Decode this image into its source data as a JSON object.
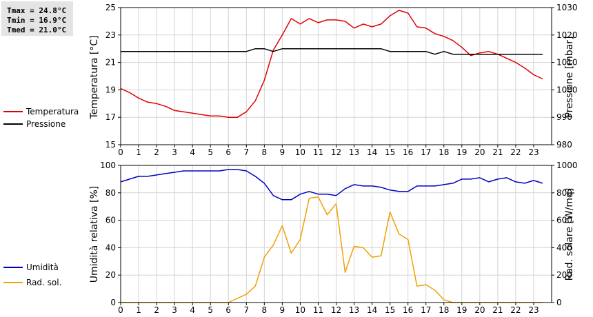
{
  "stats": {
    "tmax": "Tmax = 24.8°C",
    "tmin": "Tmin = 16.9°C",
    "tmed": "Tmed = 21.0°C"
  },
  "chart_data": [
    {
      "type": "line",
      "xlabel": "",
      "ylabel": "Temperatura [°C]",
      "ylabel_right": "Pressione [mbar]",
      "xlim": [
        0,
        24
      ],
      "xticks": [
        "0",
        "1",
        "2",
        "3",
        "4",
        "5",
        "6",
        "7",
        "8",
        "9",
        "10",
        "11",
        "12",
        "13",
        "14",
        "15",
        "16",
        "17",
        "18",
        "19",
        "20",
        "21",
        "22",
        "23"
      ],
      "ylim": [
        15,
        25
      ],
      "yticks": [
        "15",
        "17",
        "19",
        "21",
        "23",
        "25"
      ],
      "ylim_right": [
        980,
        1030
      ],
      "yticks_right": [
        "980",
        "990",
        "1000",
        "1010",
        "1020",
        "1030"
      ],
      "grid": true,
      "series": [
        {
          "name": "Temperatura",
          "axis": "left",
          "color": "#e00000",
          "x": [
            0,
            0.5,
            1,
            1.5,
            2,
            2.5,
            3,
            3.5,
            4,
            4.5,
            5,
            5.5,
            6,
            6.5,
            7,
            7.5,
            8,
            8.5,
            9,
            9.5,
            10,
            10.5,
            11,
            11.5,
            12,
            12.5,
            13,
            13.5,
            14,
            14.5,
            15,
            15.5,
            16,
            16.5,
            17,
            17.5,
            18,
            18.5,
            19,
            19.5,
            20,
            20.5,
            21,
            21.5,
            22,
            22.5,
            23,
            23.5
          ],
          "values": [
            19.1,
            18.8,
            18.4,
            18.1,
            18.0,
            17.8,
            17.5,
            17.4,
            17.3,
            17.2,
            17.1,
            17.1,
            17.0,
            17.0,
            17.4,
            18.2,
            19.7,
            21.9,
            23.0,
            24.2,
            23.8,
            24.2,
            23.9,
            24.1,
            24.1,
            24.0,
            23.5,
            23.8,
            23.6,
            23.8,
            24.4,
            24.8,
            24.6,
            23.6,
            23.5,
            23.1,
            22.9,
            22.6,
            22.1,
            21.5,
            21.7,
            21.8,
            21.6,
            21.3,
            21.0,
            20.6,
            20.1,
            19.8
          ]
        },
        {
          "name": "Pressione",
          "axis": "right",
          "color": "#000000",
          "x": [
            0,
            7,
            7.5,
            8,
            8.5,
            9,
            14.5,
            15,
            17,
            17.5,
            18,
            18.5,
            23.5
          ],
          "values": [
            1014,
            1014,
            1015,
            1015,
            1014,
            1015,
            1015,
            1014,
            1014,
            1013,
            1014,
            1013,
            1013
          ]
        }
      ]
    },
    {
      "type": "line",
      "xlabel": "",
      "ylabel": "Umidità relativa [%]",
      "ylabel_right": "Rad. solare [W/mq]",
      "xlim": [
        0,
        24
      ],
      "xticks": [
        "0",
        "1",
        "2",
        "3",
        "4",
        "5",
        "6",
        "7",
        "8",
        "9",
        "10",
        "11",
        "12",
        "13",
        "14",
        "15",
        "16",
        "17",
        "18",
        "19",
        "20",
        "21",
        "22",
        "23"
      ],
      "ylim": [
        0,
        100
      ],
      "yticks": [
        "0",
        "20",
        "40",
        "60",
        "80",
        "100"
      ],
      "ylim_right": [
        0,
        1000
      ],
      "yticks_right": [
        "0",
        "200",
        "400",
        "600",
        "800",
        "1000"
      ],
      "grid": true,
      "series": [
        {
          "name": "Umidità",
          "axis": "left",
          "color": "#0000c0",
          "x": [
            0,
            0.5,
            1,
            1.5,
            2,
            2.5,
            3,
            3.5,
            4,
            4.5,
            5,
            5.5,
            6,
            6.5,
            7,
            7.5,
            8,
            8.5,
            9,
            9.5,
            10,
            10.5,
            11,
            11.5,
            12,
            12.5,
            13,
            13.5,
            14,
            14.5,
            15,
            15.5,
            16,
            16.5,
            17,
            17.5,
            18,
            18.5,
            19,
            19.5,
            20,
            20.5,
            21,
            21.5,
            22,
            22.5,
            23,
            23.5
          ],
          "values": [
            88,
            90,
            92,
            92,
            93,
            94,
            95,
            96,
            96,
            96,
            96,
            96,
            97,
            97,
            96,
            92,
            87,
            78,
            75,
            75,
            79,
            81,
            79,
            79,
            78,
            83,
            86,
            85,
            85,
            84,
            82,
            81,
            81,
            85,
            85,
            85,
            86,
            87,
            90,
            90,
            91,
            88,
            90,
            91,
            88,
            87,
            89,
            87
          ]
        },
        {
          "name": "Rad. sol.",
          "axis": "right",
          "color": "#f0a000",
          "x": [
            0,
            6,
            6.5,
            7,
            7.5,
            8,
            8.5,
            9,
            9.5,
            10,
            10.5,
            11,
            11.5,
            12,
            12.5,
            13,
            13.5,
            14,
            14.5,
            15,
            15.5,
            16,
            16.5,
            17,
            17.5,
            18,
            18.5,
            19,
            23.5
          ],
          "values": [
            0,
            0,
            30,
            60,
            120,
            330,
            420,
            560,
            360,
            460,
            760,
            770,
            640,
            720,
            220,
            410,
            400,
            330,
            340,
            660,
            500,
            460,
            120,
            130,
            90,
            20,
            0,
            0,
            0
          ]
        }
      ]
    }
  ]
}
